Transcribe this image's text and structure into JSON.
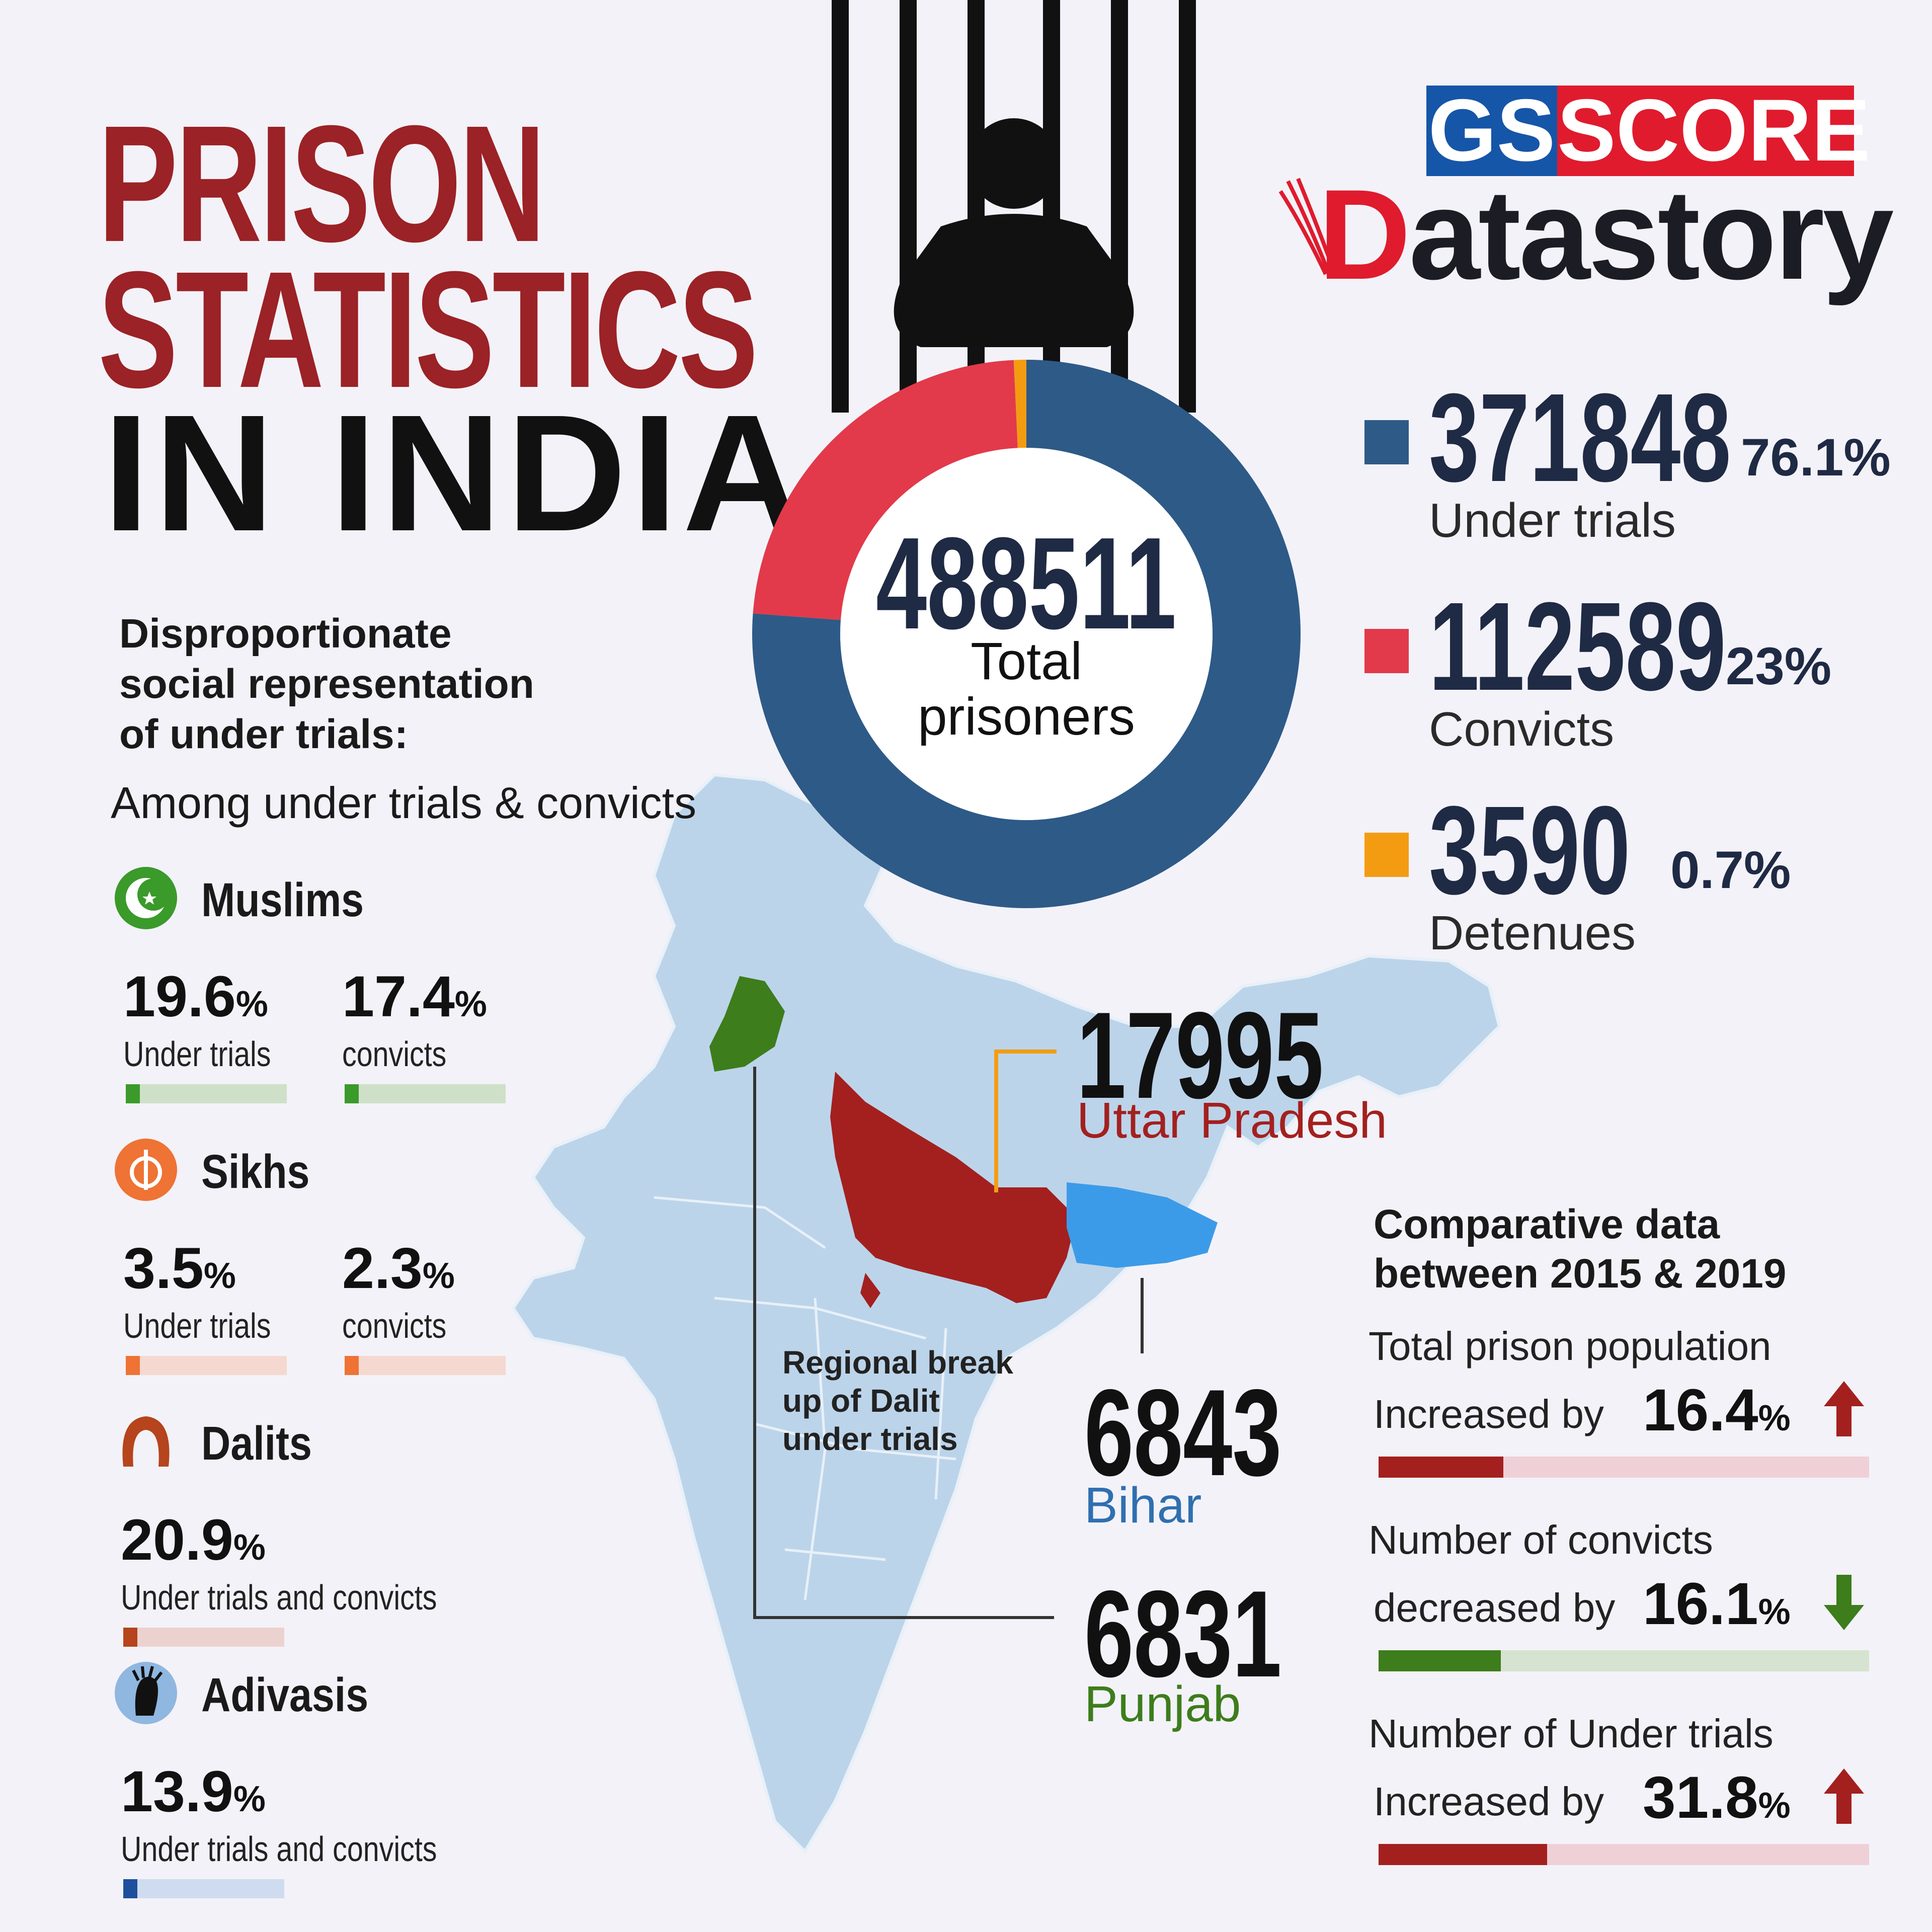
{
  "title": {
    "line1": "PRISON",
    "line2": "STATISTICS",
    "line3": "IN INDIA"
  },
  "logo": {
    "gs": "GS",
    "score": "SCORE",
    "datastory_first": "D",
    "datastory_rest": "atastory"
  },
  "colors": {
    "under_trials": "#2e5a87",
    "convicts": "#e23a4a",
    "detenues": "#f39c12",
    "title_red": "#9b2226",
    "map_blue": "#bcd4ea",
    "up": "#a3201f",
    "bihar": "#3c9be8",
    "punjab": "#3d7d1c"
  },
  "donut": {
    "total": "488511",
    "label_line1": "Total",
    "label_line2": "prisoners",
    "segments": [
      {
        "name": "Under trials",
        "value": 371848,
        "color": "#2e5a87"
      },
      {
        "name": "Convicts",
        "value": 112589,
        "color": "#e23a4a"
      },
      {
        "name": "Detenues",
        "value": 3590,
        "color": "#f39c12"
      }
    ]
  },
  "legend": [
    {
      "number": "371848",
      "pct": "76.1%",
      "label": "Under trials",
      "color": "#2e5a87"
    },
    {
      "number": "112589",
      "pct": "23%",
      "label": "Convicts",
      "color": "#e23a4a"
    },
    {
      "number": "3590",
      "pct": "0.7%",
      "label": "Detenues",
      "color": "#f39c12"
    }
  ],
  "social": {
    "heading_line1": "Disproportionate",
    "heading_line2": "social representation",
    "heading_line3": "of under trials:",
    "subheading": "Among under trials & convicts",
    "groups": [
      {
        "name": "Muslims",
        "icon": "crescent-star-icon",
        "color": "#3a9a2a",
        "track": "#cfe0c8",
        "stats": [
          {
            "value": "19.6",
            "unit": "%",
            "label": "Under trials",
            "pct": 19.6
          },
          {
            "value": "17.4",
            "unit": "%",
            "label": "convicts",
            "pct": 17.4
          }
        ]
      },
      {
        "name": "Sikhs",
        "icon": "khanda-icon",
        "color": "#ee7334",
        "track": "#f5d8cf",
        "stats": [
          {
            "value": "3.5",
            "unit": "%",
            "label": "Under trials",
            "pct": 3.5
          },
          {
            "value": "2.3",
            "unit": "%",
            "label": "convicts",
            "pct": 2.3
          }
        ]
      },
      {
        "name": "Dalits",
        "icon": "dalit-icon",
        "color": "#b6441c",
        "track": "#ecd2cf",
        "stats": [
          {
            "value": "20.9",
            "unit": "%",
            "label": "Under trials and convicts",
            "pct": 20.9
          }
        ]
      },
      {
        "name": "Adivasis",
        "icon": "adivasi-icon",
        "color": "#1e4f9c",
        "track": "#cfdcef",
        "stats": [
          {
            "value": "13.9",
            "unit": "%",
            "label": "Under trials and convicts",
            "pct": 13.9
          }
        ]
      }
    ]
  },
  "map": {
    "regional_line1": "Regional break",
    "regional_line2": "up of Dalit",
    "regional_line3": "under trials",
    "states": [
      {
        "number": "17995",
        "name": "Uttar Pradesh",
        "color": "#a3201f"
      },
      {
        "number": "6843",
        "name": "Bihar",
        "color": "#3c9be8"
      },
      {
        "number": "6831",
        "name": "Punjab",
        "color": "#3d7d1c"
      }
    ]
  },
  "comparative": {
    "heading_line1": "Comparative data",
    "heading_line2": "between 2015 & 2019",
    "items": [
      {
        "label": "Total prison population",
        "prefix": "Increased by",
        "value": "16.4",
        "unit": "%",
        "direction": "up-arrow-icon",
        "pct": 16.4,
        "color": "#a3201f",
        "track": "#efd0d6"
      },
      {
        "label": "Number of convicts",
        "prefix": "decreased by",
        "value": "16.1",
        "unit": "%",
        "direction": "down-arrow-icon",
        "pct": 16.1,
        "color": "#3d7d1c",
        "track": "#d6e3d0"
      },
      {
        "label": "Number of Under trials",
        "prefix": "Increased by",
        "value": "31.8",
        "unit": "%",
        "direction": "up-arrow-icon",
        "pct": 31.8,
        "color": "#a3201f",
        "track": "#efd0d6"
      }
    ]
  }
}
